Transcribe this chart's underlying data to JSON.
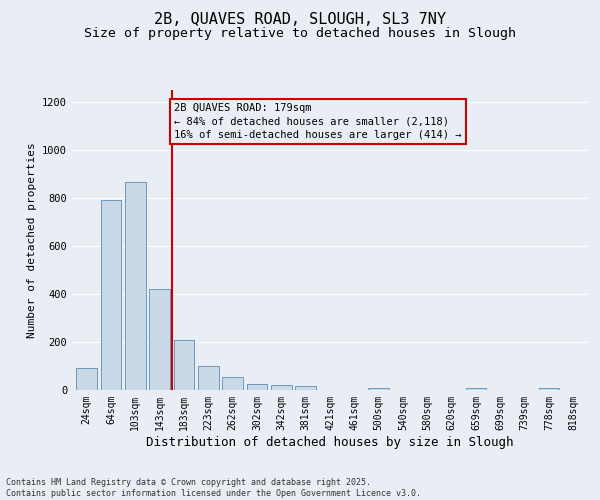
{
  "title_line1": "2B, QUAVES ROAD, SLOUGH, SL3 7NY",
  "title_line2": "Size of property relative to detached houses in Slough",
  "xlabel": "Distribution of detached houses by size in Slough",
  "ylabel": "Number of detached properties",
  "categories": [
    "24sqm",
    "64sqm",
    "103sqm",
    "143sqm",
    "183sqm",
    "223sqm",
    "262sqm",
    "302sqm",
    "342sqm",
    "381sqm",
    "421sqm",
    "461sqm",
    "500sqm",
    "540sqm",
    "580sqm",
    "620sqm",
    "659sqm",
    "699sqm",
    "739sqm",
    "778sqm",
    "818sqm"
  ],
  "values": [
    90,
    790,
    865,
    420,
    210,
    100,
    55,
    25,
    20,
    15,
    0,
    0,
    8,
    0,
    0,
    0,
    8,
    0,
    0,
    8,
    0
  ],
  "bar_color": "#c9d9e8",
  "bar_edge_color": "#5b8db8",
  "vline_color": "#cc0000",
  "annotation_title": "2B QUAVES ROAD: 179sqm",
  "annotation_line1": "← 84% of detached houses are smaller (2,118)",
  "annotation_line2": "16% of semi-detached houses are larger (414) →",
  "annotation_box_color": "#cc0000",
  "ylim": [
    0,
    1250
  ],
  "yticks": [
    0,
    200,
    400,
    600,
    800,
    1000,
    1200
  ],
  "background_color": "#e8eef4",
  "footer_line1": "Contains HM Land Registry data © Crown copyright and database right 2025.",
  "footer_line2": "Contains public sector information licensed under the Open Government Licence v3.0.",
  "grid_color": "#ffffff",
  "title_fontsize": 11,
  "subtitle_fontsize": 9.5,
  "tick_fontsize": 7,
  "ylabel_fontsize": 8,
  "xlabel_fontsize": 9,
  "annotation_fontsize": 7.5,
  "footer_fontsize": 6
}
